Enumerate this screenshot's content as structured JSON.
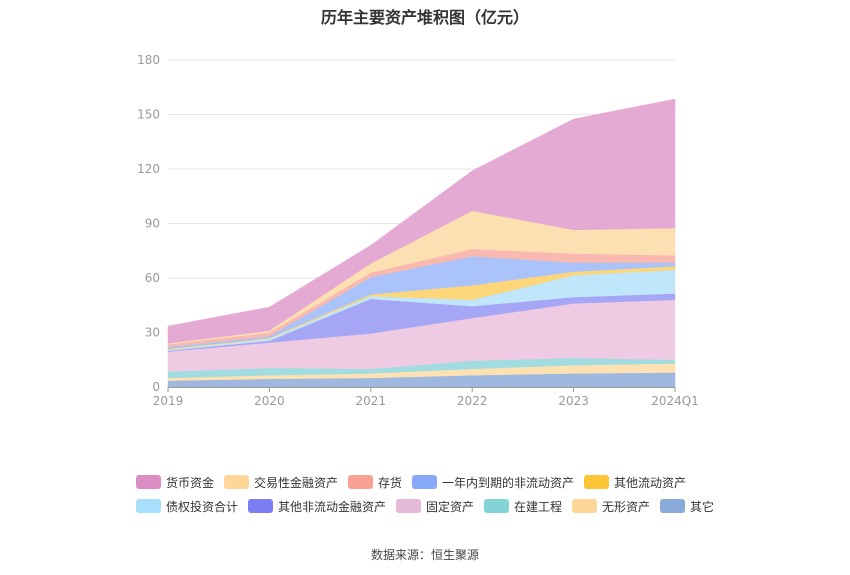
{
  "chart_data": {
    "type": "area",
    "stacked": true,
    "title": "历年主要资产堆积图（亿元）",
    "categories": [
      "2019",
      "2020",
      "2021",
      "2022",
      "2023",
      "2024Q1"
    ],
    "ylim": [
      0,
      180
    ],
    "yticks": [
      0,
      30,
      60,
      90,
      120,
      150,
      180
    ],
    "grid": true,
    "legend_position": "bottom",
    "series": [
      {
        "name": "其它",
        "color": "#9fb8df",
        "values": [
          3.5,
          4.5,
          5.0,
          6.5,
          7.5,
          8.0
        ]
      },
      {
        "name": "无形资产",
        "color": "#fde1b2",
        "values": [
          1.5,
          2.0,
          2.5,
          3.5,
          4.5,
          5.0
        ]
      },
      {
        "name": "在建工程",
        "color": "#a1dde0",
        "values": [
          3.5,
          4.0,
          2.5,
          4.5,
          4.0,
          2.0
        ]
      },
      {
        "name": "固定资产",
        "color": "#eecbe2",
        "values": [
          11.0,
          14.0,
          19.5,
          23.5,
          30.0,
          33.0
        ]
      },
      {
        "name": "其他非流动金融资产",
        "color": "#a5a6f6",
        "values": [
          0.5,
          1.0,
          19.0,
          6.5,
          3.5,
          3.5
        ]
      },
      {
        "name": "债权投资合计",
        "color": "#bfe6fb",
        "values": [
          0.5,
          1.0,
          1.5,
          3.5,
          12.0,
          13.0
        ]
      },
      {
        "name": "其他流动资产",
        "color": "#fdd679",
        "values": [
          0.5,
          0.5,
          1.0,
          8.0,
          2.0,
          2.0
        ]
      },
      {
        "name": "一年内到期的非流动资产",
        "color": "#aac3fb",
        "values": [
          1.0,
          1.0,
          9.5,
          16.0,
          5.0,
          2.0
        ]
      },
      {
        "name": "存货",
        "color": "#f9b9b0",
        "values": [
          1.5,
          2.0,
          2.5,
          4.0,
          5.0,
          4.0
        ]
      },
      {
        "name": "交易性金融资产",
        "color": "#fde0b2",
        "values": [
          0.5,
          1.0,
          5.0,
          21.0,
          13.0,
          15.0
        ]
      },
      {
        "name": "货币资金",
        "color": "#e5aad4",
        "values": [
          9.5,
          13.0,
          10.0,
          22.0,
          61.0,
          71.0
        ]
      }
    ]
  },
  "legend": {
    "items": [
      {
        "label": "货币资金",
        "color": "#da8cc4"
      },
      {
        "label": "交易性金融资产",
        "color": "#fdd698"
      },
      {
        "label": "存货",
        "color": "#f8a194"
      },
      {
        "label": "一年内到期的非流动资产",
        "color": "#88a9f7"
      },
      {
        "label": "其他流动资产",
        "color": "#fcc536"
      },
      {
        "label": "债权投资合计",
        "color": "#a8dffb"
      },
      {
        "label": "其他非流动金融资产",
        "color": "#7b7df3"
      },
      {
        "label": "固定资产",
        "color": "#e7b9d8"
      },
      {
        "label": "在建工程",
        "color": "#82d4d6"
      },
      {
        "label": "无形资产",
        "color": "#fdd698"
      },
      {
        "label": "其它",
        "color": "#8aaad9"
      }
    ]
  },
  "source": "数据来源：恒生聚源"
}
